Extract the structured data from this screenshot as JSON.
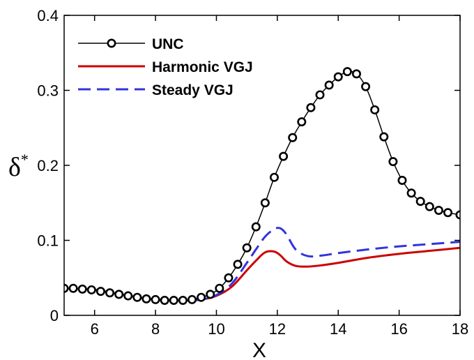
{
  "chart_data": {
    "type": "line",
    "xlabel": "X",
    "ylabel": "δ",
    "ylabel_sup": "*",
    "xlim": [
      5,
      18
    ],
    "ylim": [
      0,
      0.4
    ],
    "xticks": [
      6,
      8,
      10,
      12,
      14,
      16,
      18
    ],
    "yticks": [
      0,
      0.1,
      0.2,
      0.3,
      0.4
    ],
    "xtick_labels": [
      "6",
      "8",
      "10",
      "12",
      "14",
      "16",
      "18"
    ],
    "ytick_labels": [
      "0",
      "0.1",
      "0.2",
      "0.3",
      "0.4"
    ],
    "grid": false,
    "legend_position": "top-left",
    "series": [
      {
        "name": "UNC",
        "color": "#000000",
        "style": "solid",
        "marker": "circle",
        "x": [
          5.0,
          5.3,
          5.6,
          5.9,
          6.2,
          6.5,
          6.8,
          7.1,
          7.4,
          7.7,
          8.0,
          8.3,
          8.6,
          8.9,
          9.2,
          9.5,
          9.8,
          10.1,
          10.4,
          10.7,
          11.0,
          11.3,
          11.6,
          11.9,
          12.2,
          12.5,
          12.8,
          13.1,
          13.4,
          13.7,
          14.0,
          14.3,
          14.6,
          14.9,
          15.2,
          15.5,
          15.8,
          16.1,
          16.4,
          16.7,
          17.0,
          17.3,
          17.6,
          18.0
        ],
        "y": [
          0.036,
          0.036,
          0.035,
          0.034,
          0.032,
          0.03,
          0.028,
          0.026,
          0.024,
          0.022,
          0.021,
          0.02,
          0.02,
          0.02,
          0.021,
          0.024,
          0.028,
          0.036,
          0.05,
          0.068,
          0.09,
          0.118,
          0.15,
          0.184,
          0.212,
          0.237,
          0.258,
          0.277,
          0.294,
          0.307,
          0.318,
          0.325,
          0.322,
          0.305,
          0.274,
          0.238,
          0.205,
          0.18,
          0.163,
          0.152,
          0.145,
          0.14,
          0.137,
          0.134
        ]
      },
      {
        "name": "Harmonic VGJ",
        "color": "#cc0000",
        "style": "solid",
        "marker": "none",
        "x": [
          5.0,
          6.0,
          7.0,
          8.0,
          9.0,
          9.5,
          10.0,
          10.5,
          11.0,
          11.3,
          11.6,
          11.9,
          12.1,
          12.3,
          12.6,
          13.0,
          13.5,
          14.0,
          15.0,
          16.0,
          17.0,
          18.0
        ],
        "y": [
          0.036,
          0.034,
          0.027,
          0.021,
          0.02,
          0.021,
          0.026,
          0.038,
          0.06,
          0.073,
          0.084,
          0.085,
          0.08,
          0.072,
          0.066,
          0.065,
          0.067,
          0.07,
          0.077,
          0.082,
          0.086,
          0.09
        ]
      },
      {
        "name": "Steady VGJ",
        "color": "#3333dd",
        "style": "dashed",
        "marker": "none",
        "x": [
          5.0,
          6.0,
          7.0,
          8.0,
          9.0,
          9.5,
          10.0,
          10.5,
          11.0,
          11.3,
          11.6,
          11.9,
          12.1,
          12.3,
          12.6,
          13.0,
          13.5,
          14.0,
          15.0,
          16.0,
          17.0,
          18.0
        ],
        "y": [
          0.036,
          0.034,
          0.027,
          0.021,
          0.02,
          0.021,
          0.027,
          0.042,
          0.07,
          0.088,
          0.105,
          0.115,
          0.116,
          0.108,
          0.088,
          0.079,
          0.08,
          0.083,
          0.088,
          0.092,
          0.095,
          0.098
        ]
      }
    ]
  }
}
